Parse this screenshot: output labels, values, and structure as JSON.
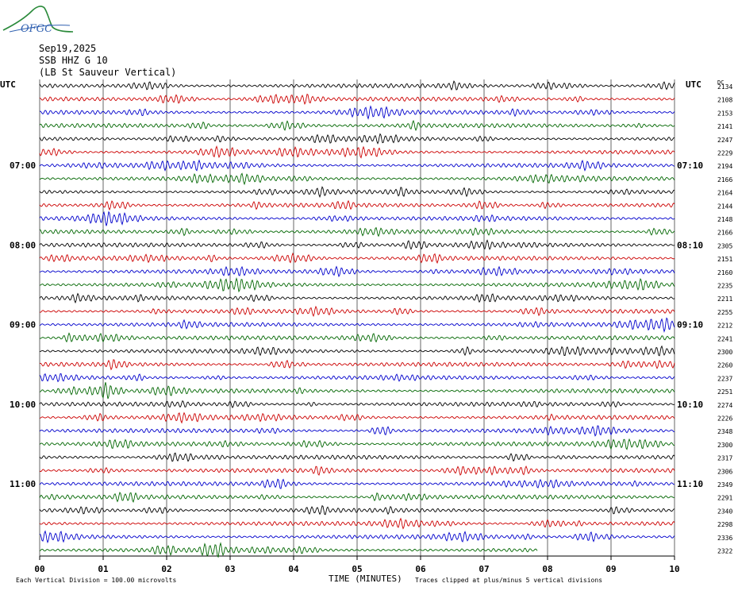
{
  "logo_text": "OFGC",
  "header": {
    "date": "Sep19,2025",
    "station": "SSB HHZ G 10",
    "location": "(LB  St Sauveur Vertical)"
  },
  "chart_data": {
    "type": "line",
    "title": "",
    "left_axis_label": "UTC",
    "right_axis_label": "UTC",
    "dc_label": "DC",
    "xlabel": "TIME (MINUTES)",
    "x_ticks": [
      "00",
      "01",
      "02",
      "03",
      "04",
      "05",
      "06",
      "07",
      "08",
      "09",
      "10"
    ],
    "xlim": [
      0,
      10
    ],
    "left_time_labels": [
      {
        "row": 6,
        "label": "07:00"
      },
      {
        "row": 12,
        "label": "08:00"
      },
      {
        "row": 18,
        "label": "09:00"
      },
      {
        "row": 24,
        "label": "10:00"
      },
      {
        "row": 30,
        "label": "11:00"
      }
    ],
    "right_time_labels": [
      {
        "row": 6,
        "label": "07:10"
      },
      {
        "row": 12,
        "label": "08:10"
      },
      {
        "row": 18,
        "label": "09:10"
      },
      {
        "row": 24,
        "label": "10:10"
      },
      {
        "row": 30,
        "label": "11:10"
      }
    ],
    "trace_colors": [
      "#000000",
      "#cc0000",
      "#0000cc",
      "#006600"
    ],
    "dc_offsets": [
      2134,
      2108,
      2153,
      2141,
      2247,
      2229,
      2194,
      2166,
      2164,
      2144,
      2148,
      2166,
      2305,
      2151,
      2160,
      2235,
      2211,
      2255,
      2212,
      2241,
      2300,
      2260,
      2237,
      2251,
      2274,
      2226,
      2348,
      2300,
      2317,
      2306,
      2349,
      2291,
      2340,
      2298,
      2336,
      2322
    ],
    "last_trace_end_minute": 7.85,
    "grid": true
  },
  "footer": {
    "scale_note": "Each Vertical Division =  100.00 microvolts",
    "clip_note": "Traces clipped at plus/minus 5 vertical divisions"
  }
}
